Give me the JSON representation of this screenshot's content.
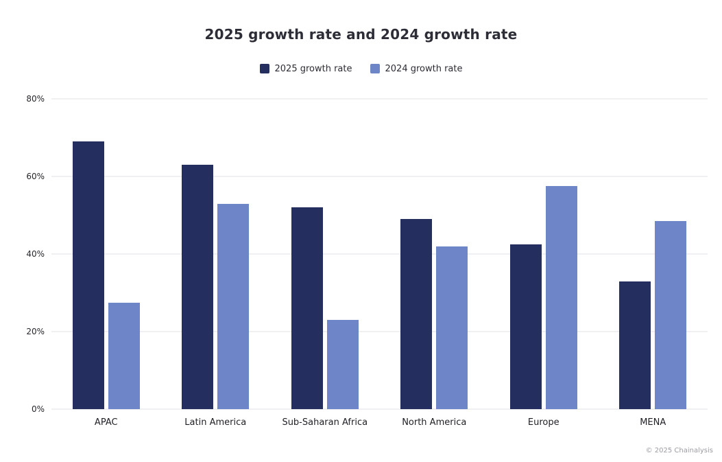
{
  "chart_data": {
    "type": "bar",
    "title": "2025 growth rate and 2024 growth rate",
    "categories": [
      "APAC",
      "Latin America",
      "Sub-Saharan Africa",
      "North America",
      "Europe",
      "MENA"
    ],
    "series": [
      {
        "name": "2025 growth rate",
        "color": "#252f5f",
        "values": [
          69,
          63,
          52,
          49,
          42.5,
          33
        ]
      },
      {
        "name": "2024 growth rate",
        "color": "#6e85c7",
        "values": [
          27.5,
          53,
          23,
          42,
          57.5,
          48.5
        ]
      }
    ],
    "ylim": [
      0,
      80
    ],
    "yticks": [
      0,
      20,
      40,
      60,
      80
    ],
    "ytick_suffix": "%",
    "grid": "horizontal",
    "legend_position": "top"
  },
  "footer": {
    "credit": "© 2025 Chainalysis"
  }
}
